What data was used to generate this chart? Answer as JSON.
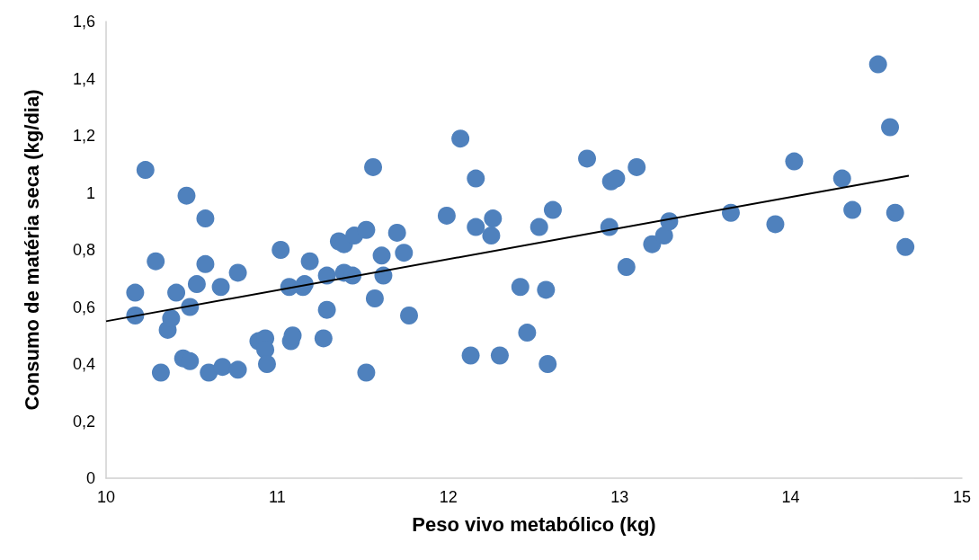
{
  "chart_data": {
    "type": "scatter",
    "xlabel": "Peso vivo metabólico (kg)",
    "ylabel": "Consumo de matéria seca (kg/dia)",
    "xlim": [
      10,
      15
    ],
    "xticks": [
      10,
      11,
      12,
      13,
      14,
      15
    ],
    "ylim": [
      0,
      1.6
    ],
    "yticks": [
      0,
      {
        "value": 0.2,
        "label": "0,2"
      },
      {
        "value": 0.4,
        "label": "0,4"
      },
      {
        "value": 0.6,
        "label": "0,6"
      },
      {
        "value": 0.8,
        "label": "0,8"
      },
      1,
      {
        "value": 1.2,
        "label": "1,2"
      },
      {
        "value": 1.4,
        "label": "1,4"
      },
      {
        "value": 1.6,
        "label": "1,6"
      }
    ],
    "grid": false,
    "marker": "circle",
    "series": [
      {
        "color": "#4f81bd",
        "x": [
          10.17,
          10.17,
          10.23,
          10.29,
          10.32,
          10.36,
          10.38,
          10.41,
          10.45,
          10.47,
          10.49,
          10.49,
          10.53,
          10.58,
          10.58,
          10.6,
          10.67,
          10.68,
          10.77,
          10.77,
          10.89,
          10.93,
          10.93,
          10.94,
          11.02,
          11.07,
          11.08,
          11.09,
          11.15,
          11.16,
          11.19,
          11.27,
          11.29,
          11.29,
          11.36,
          11.39,
          11.39,
          11.44,
          11.45,
          11.52,
          11.52,
          11.56,
          11.57,
          11.61,
          11.62,
          11.7,
          11.74,
          11.77,
          11.99,
          12.07,
          12.13,
          12.16,
          12.16,
          12.25,
          12.26,
          12.3,
          12.42,
          12.46,
          12.53,
          12.57,
          12.58,
          12.61,
          12.81,
          12.94,
          12.95,
          12.98,
          13.04,
          13.1,
          13.19,
          13.26,
          13.29,
          13.65,
          13.91,
          14.02,
          14.3,
          14.36,
          14.51,
          14.58,
          14.61,
          14.67
        ],
        "values": [
          0.65,
          0.57,
          1.08,
          0.76,
          0.37,
          0.52,
          0.56,
          0.65,
          0.42,
          0.99,
          0.41,
          0.6,
          0.68,
          0.91,
          0.75,
          0.37,
          0.67,
          0.39,
          0.72,
          0.38,
          0.48,
          0.49,
          0.45,
          0.4,
          0.8,
          0.67,
          0.48,
          0.5,
          0.67,
          0.68,
          0.76,
          0.49,
          0.59,
          0.71,
          0.83,
          0.82,
          0.72,
          0.71,
          0.85,
          0.87,
          0.37,
          1.09,
          0.63,
          0.78,
          0.71,
          0.86,
          0.79,
          0.57,
          0.92,
          1.19,
          0.43,
          0.88,
          1.05,
          0.85,
          0.91,
          0.43,
          0.67,
          0.51,
          0.88,
          0.66,
          0.4,
          0.94,
          1.12,
          0.88,
          1.04,
          1.05,
          0.74,
          1.09,
          0.82,
          0.85,
          0.9,
          0.93,
          0.89,
          1.11,
          1.05,
          0.94,
          1.45,
          1.23,
          0.93,
          0.81
        ]
      },
      {
        "type": "line",
        "color": "#000000",
        "marker": "none",
        "line_style": "solid",
        "x": [
          10,
          14.69
        ],
        "values": [
          0.55,
          1.06
        ]
      }
    ]
  }
}
